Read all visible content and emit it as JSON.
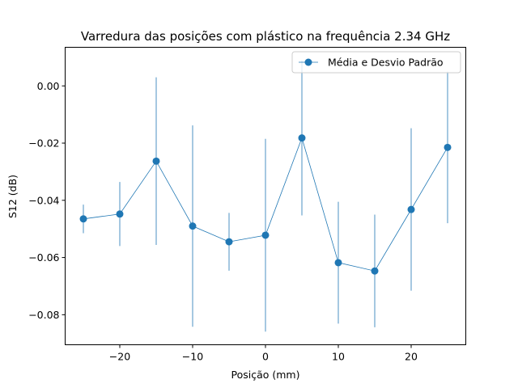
{
  "chart_data": {
    "type": "line",
    "title": "Varredura das posições com plástico na frequência 2.34 GHz",
    "xlabel": "Posição (mm)",
    "ylabel": "S12 (dB)",
    "xlim": [
      -27.5,
      27.5
    ],
    "ylim": [
      -0.0905,
      0.0135
    ],
    "x_ticks": [
      -20,
      -10,
      0,
      10,
      20
    ],
    "x_tick_labels": [
      "−20",
      "−10",
      "0",
      "10",
      "20"
    ],
    "y_ticks": [
      0.0,
      -0.02,
      -0.04,
      -0.06,
      -0.08
    ],
    "y_tick_labels": [
      "0.00",
      "−0.02",
      "−0.04",
      "−0.06",
      "−0.08"
    ],
    "grid": false,
    "legend_position": "top-right",
    "color": "#1f77b4",
    "series": [
      {
        "name": "Média e Desvio Padrão",
        "x": [
          -25,
          -20,
          -15,
          -10,
          -5,
          0,
          5,
          10,
          15,
          20,
          25
        ],
        "y": [
          -0.0465,
          -0.0448,
          -0.0263,
          -0.049,
          -0.0545,
          -0.0522,
          -0.0182,
          -0.0618,
          -0.0647,
          -0.0432,
          -0.0215
        ],
        "err": [
          0.005,
          0.0112,
          0.0293,
          0.0352,
          0.0101,
          0.0337,
          0.0271,
          0.0213,
          0.0197,
          0.0284,
          0.0265
        ]
      }
    ]
  }
}
